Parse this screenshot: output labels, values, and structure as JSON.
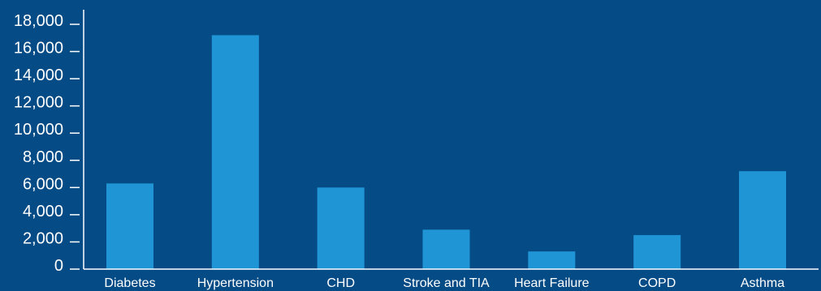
{
  "chart_data": {
    "type": "bar",
    "categories": [
      "Diabetes",
      "Hypertension",
      "CHD",
      "Stroke and TIA",
      "Heart Failure",
      "COPD",
      "Asthma"
    ],
    "values": [
      6300,
      17200,
      6000,
      2900,
      1300,
      2500,
      7200
    ],
    "ylim": [
      0,
      18000
    ],
    "yticks": [
      "0",
      "2,000",
      "4,000",
      "6,000",
      "8,000",
      "10,000",
      "12,000",
      "14,000",
      "16,000",
      "18,000"
    ],
    "ytick_values": [
      0,
      2000,
      4000,
      6000,
      8000,
      10000,
      12000,
      14000,
      16000,
      18000
    ],
    "grid": false,
    "legend": "none",
    "colors": {
      "background": "#054b86",
      "bar": "#1f95d6",
      "axis": "#ffffff",
      "text": "#ffffff"
    }
  }
}
